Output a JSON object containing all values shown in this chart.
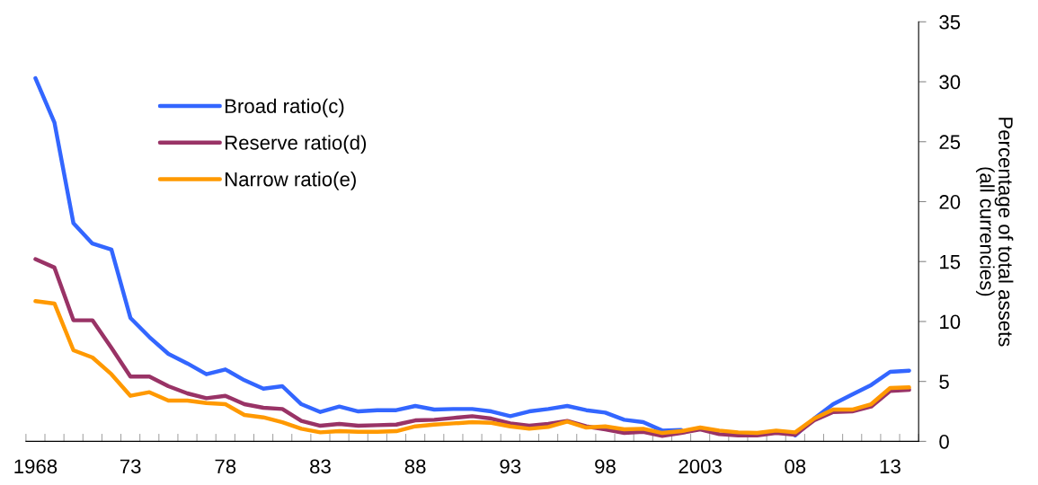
{
  "chart_data": {
    "type": "line",
    "ylabel": "Percentage of total assets\n(all currencies)",
    "x": [
      1968,
      1969,
      1970,
      1971,
      1972,
      1973,
      1974,
      1975,
      1976,
      1977,
      1978,
      1979,
      1980,
      1981,
      1982,
      1983,
      1984,
      1985,
      1986,
      1987,
      1988,
      1989,
      1990,
      1991,
      1992,
      1993,
      1994,
      1995,
      1996,
      1997,
      1998,
      1999,
      2000,
      2001,
      2002,
      2003,
      2004,
      2005,
      2006,
      2007,
      2008,
      2009,
      2010,
      2011,
      2012,
      2013,
      2014
    ],
    "series": [
      {
        "name": "Broad ratio(c)",
        "color": "#3366ff",
        "values": [
          30.3,
          26.6,
          18.2,
          16.5,
          16.0,
          10.3,
          8.7,
          7.3,
          6.5,
          5.6,
          6.0,
          5.1,
          4.4,
          4.6,
          3.1,
          2.45,
          2.9,
          2.5,
          2.6,
          2.6,
          2.95,
          2.65,
          2.7,
          2.7,
          2.5,
          2.1,
          2.5,
          2.7,
          2.95,
          2.6,
          2.4,
          1.8,
          1.6,
          0.9,
          0.95,
          null,
          null,
          null,
          null,
          null,
          0.5,
          1.9,
          3.1,
          3.9,
          4.7,
          5.8,
          5.9
        ]
      },
      {
        "name": "Reserve ratio(d)",
        "color": "#993366",
        "values": [
          15.2,
          14.5,
          10.1,
          10.1,
          7.8,
          5.4,
          5.4,
          4.6,
          4.0,
          3.6,
          3.8,
          3.1,
          2.8,
          2.7,
          1.7,
          1.3,
          1.45,
          1.3,
          1.35,
          1.4,
          1.75,
          1.8,
          1.95,
          2.1,
          1.9,
          1.5,
          1.3,
          1.45,
          1.7,
          1.25,
          1.0,
          0.7,
          0.8,
          0.45,
          0.7,
          1.0,
          0.6,
          0.5,
          0.5,
          0.7,
          0.55,
          1.75,
          2.45,
          2.5,
          2.9,
          4.2,
          4.3
        ]
      },
      {
        "name": "Narrow ratio(e)",
        "color": "#ff9900",
        "values": [
          11.7,
          11.5,
          7.6,
          7.0,
          5.6,
          3.8,
          4.1,
          3.4,
          3.4,
          3.2,
          3.1,
          2.2,
          2.0,
          1.6,
          1.05,
          0.75,
          0.85,
          0.8,
          0.8,
          0.85,
          1.25,
          1.4,
          1.5,
          1.6,
          1.55,
          1.25,
          1.05,
          1.2,
          1.65,
          1.15,
          1.25,
          1.0,
          1.05,
          0.7,
          0.85,
          1.15,
          0.9,
          0.75,
          0.7,
          0.9,
          0.75,
          1.9,
          2.65,
          2.65,
          3.1,
          4.45,
          4.5
        ]
      }
    ],
    "xlim": [
      1967.5,
      2014.5
    ],
    "xticks": [
      {
        "value": 1968,
        "label": "1968"
      },
      {
        "value": 1973,
        "label": "73"
      },
      {
        "value": 1978,
        "label": "78"
      },
      {
        "value": 1983,
        "label": "83"
      },
      {
        "value": 1988,
        "label": "88"
      },
      {
        "value": 1993,
        "label": "93"
      },
      {
        "value": 1998,
        "label": "98"
      },
      {
        "value": 2003,
        "label": "2003"
      },
      {
        "value": 2008,
        "label": "08"
      },
      {
        "value": 2013,
        "label": "13"
      },
      {
        "value": 1967.5,
        "label": null
      },
      {
        "value": 1968.5,
        "label": null
      },
      {
        "value": 1969.5,
        "label": null
      },
      {
        "value": 1970.5,
        "label": null
      },
      {
        "value": 1971.5,
        "label": null
      },
      {
        "value": 1972.5,
        "label": null
      },
      {
        "value": 1973.5,
        "label": null
      },
      {
        "value": 1974.5,
        "label": null
      },
      {
        "value": 1975.5,
        "label": null
      },
      {
        "value": 1976.5,
        "label": null
      },
      {
        "value": 1977.5,
        "label": null
      },
      {
        "value": 1978.5,
        "label": null
      },
      {
        "value": 1979.5,
        "label": null
      },
      {
        "value": 1980.5,
        "label": null
      },
      {
        "value": 1981.5,
        "label": null
      },
      {
        "value": 1982.5,
        "label": null
      },
      {
        "value": 1983.5,
        "label": null
      },
      {
        "value": 1984.5,
        "label": null
      },
      {
        "value": 1985.5,
        "label": null
      },
      {
        "value": 1986.5,
        "label": null
      },
      {
        "value": 1987.5,
        "label": null
      },
      {
        "value": 1988.5,
        "label": null
      },
      {
        "value": 1989.5,
        "label": null
      },
      {
        "value": 1990.5,
        "label": null
      },
      {
        "value": 1991.5,
        "label": null
      },
      {
        "value": 1992.5,
        "label": null
      },
      {
        "value": 1993.5,
        "label": null
      },
      {
        "value": 1994.5,
        "label": null
      },
      {
        "value": 1995.5,
        "label": null
      },
      {
        "value": 1996.5,
        "label": null
      },
      {
        "value": 1997.5,
        "label": null
      },
      {
        "value": 1998.5,
        "label": null
      },
      {
        "value": 1999.5,
        "label": null
      },
      {
        "value": 2000.5,
        "label": null
      },
      {
        "value": 2001.5,
        "label": null
      },
      {
        "value": 2002.5,
        "label": null
      },
      {
        "value": 2003.5,
        "label": null
      },
      {
        "value": 2004.5,
        "label": null
      },
      {
        "value": 2005.5,
        "label": null
      },
      {
        "value": 2006.5,
        "label": null
      },
      {
        "value": 2007.5,
        "label": null
      },
      {
        "value": 2008.5,
        "label": null
      },
      {
        "value": 2009.5,
        "label": null
      },
      {
        "value": 2010.5,
        "label": null
      },
      {
        "value": 2011.5,
        "label": null
      },
      {
        "value": 2012.5,
        "label": null
      },
      {
        "value": 2013.5,
        "label": null
      },
      {
        "value": 2014.5,
        "label": null
      }
    ],
    "ylim": [
      0,
      35
    ],
    "yticks": [
      0,
      5,
      10,
      15,
      20,
      25,
      30,
      35
    ],
    "grid": false,
    "legend": "top left",
    "marker": "none",
    "line_style": "solid"
  }
}
